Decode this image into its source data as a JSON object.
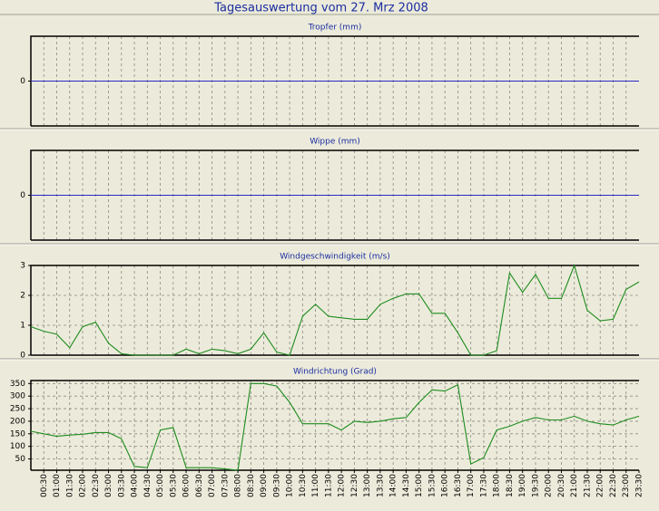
{
  "title": "Tagesauswertung vom 27. Mrz 2008",
  "chart_data": [
    {
      "type": "line",
      "title": "Tropfer (mm)",
      "color": "#2828c8",
      "ylim": [
        -1,
        1
      ],
      "yticks": [
        0
      ],
      "grid": true,
      "values": [
        0,
        0,
        0,
        0,
        0,
        0,
        0,
        0,
        0,
        0,
        0,
        0,
        0,
        0,
        0,
        0,
        0,
        0,
        0,
        0,
        0,
        0,
        0,
        0,
        0,
        0,
        0,
        0,
        0,
        0,
        0,
        0,
        0,
        0,
        0,
        0,
        0,
        0,
        0,
        0,
        0,
        0,
        0,
        0,
        0,
        0,
        0,
        0
      ]
    },
    {
      "type": "line",
      "title": "Wippe (mm)",
      "color": "#2828c8",
      "ylim": [
        -1,
        1
      ],
      "yticks": [
        0
      ],
      "grid": true,
      "values": [
        0,
        0,
        0,
        0,
        0,
        0,
        0,
        0,
        0,
        0,
        0,
        0,
        0,
        0,
        0,
        0,
        0,
        0,
        0,
        0,
        0,
        0,
        0,
        0,
        0,
        0,
        0,
        0,
        0,
        0,
        0,
        0,
        0,
        0,
        0,
        0,
        0,
        0,
        0,
        0,
        0,
        0,
        0,
        0,
        0,
        0,
        0,
        0
      ]
    },
    {
      "type": "line",
      "title": "Windgeschwindigkeit (m/s)",
      "color": "#1e8c1e",
      "ylim": [
        0,
        3
      ],
      "yticks": [
        0,
        1,
        2,
        3
      ],
      "grid": true,
      "values": [
        0.95,
        0.8,
        0.7,
        0.25,
        0.95,
        1.1,
        0.4,
        0.05,
        0,
        0,
        0,
        0,
        0.2,
        0.05,
        0.2,
        0.15,
        0.05,
        0.2,
        0.75,
        0.1,
        0,
        1.3,
        1.7,
        1.3,
        1.25,
        1.2,
        1.2,
        1.7,
        1.9,
        2.05,
        2.05,
        1.4,
        1.4,
        0.75,
        0,
        0,
        0.15,
        2.75,
        2.1,
        2.7,
        1.9,
        1.9,
        3.0,
        1.5,
        1.15,
        1.2,
        2.2,
        2.45
      ]
    },
    {
      "type": "line",
      "title": "Windrichtung (Grad)",
      "color": "#1e8c1e",
      "ylim": [
        5,
        362
      ],
      "yticks": [
        50,
        100,
        150,
        200,
        250,
        300,
        350
      ],
      "grid": true,
      "categories": [
        null,
        "00:30",
        "01:00",
        "01:30",
        "02:00",
        "02:30",
        "03:00",
        "03:30",
        "04:00",
        "04:30",
        "05:00",
        "05:30",
        "06:00",
        "06:30",
        "07:00",
        "07:30",
        "08:00",
        "08:30",
        "09:00",
        "09:30",
        "10:00",
        "10:30",
        "11:00",
        "11:30",
        "12:00",
        "12:30",
        "13:00",
        "13:30",
        "14:00",
        "14:30",
        "15:00",
        "15:30",
        "16:00",
        "16:30",
        "17:00",
        "17:30",
        "18:00",
        "18:30",
        "19:00",
        "19:30",
        "20:00",
        "20:30",
        "21:00",
        "21:30",
        "22:00",
        "22:30",
        "23:00",
        "23:30"
      ],
      "values": [
        160,
        150,
        140,
        145,
        148,
        155,
        155,
        130,
        20,
        15,
        165,
        175,
        15,
        15,
        15,
        10,
        5,
        350,
        350,
        340,
        275,
        190,
        190,
        190,
        165,
        200,
        195,
        200,
        210,
        215,
        275,
        325,
        320,
        345,
        30,
        55,
        165,
        180,
        200,
        215,
        205,
        205,
        220,
        200,
        190,
        185,
        205,
        220
      ]
    }
  ]
}
